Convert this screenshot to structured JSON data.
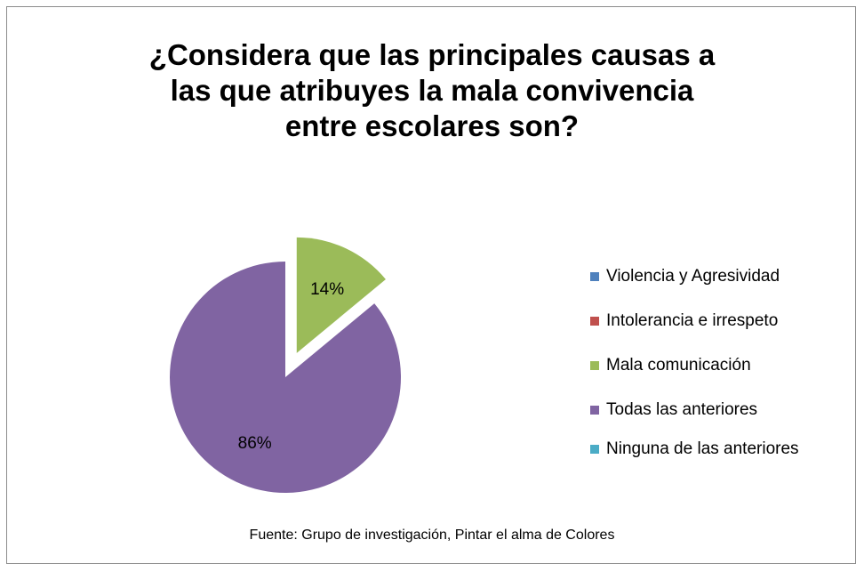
{
  "chart_data": {
    "type": "pie",
    "title": "¿Considera que las principales causas a\nlas que atribuyes la mala convivencia\nentre escolares son?",
    "categories": [
      "Violencia y Agresividad",
      "Intolerancia e irrespeto",
      "Mala comunicación",
      "Todas las anteriores",
      "Ninguna de las anteriores"
    ],
    "values": [
      0,
      0,
      14,
      86,
      0
    ],
    "value_labels": [
      "",
      "",
      "14%",
      "86%",
      ""
    ],
    "colors": [
      "#4f81bd",
      "#c0504d",
      "#9bbb59",
      "#8064a2",
      "#4bacc6"
    ],
    "legend_position": "right",
    "exploded": true,
    "source": "Fuente: Grupo de investigación, Pintar el alma de Colores"
  }
}
